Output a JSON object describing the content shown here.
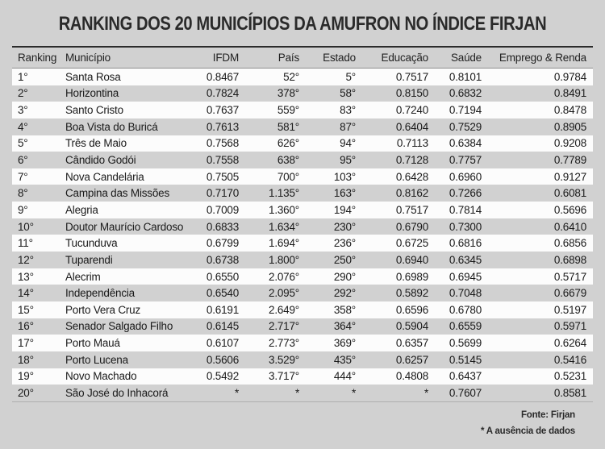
{
  "chart_data": {
    "type": "table",
    "title": "RANKING DOS 20 MUNICÍPIOS DA AMUFRON NO ÍNDICE FIRJAN",
    "columns": [
      "Ranking",
      "Município",
      "IFDM",
      "País",
      "Estado",
      "Educação",
      "Saúde",
      "Emprego & Renda"
    ],
    "rows": [
      [
        "1°",
        "Santa Rosa",
        "0.8467",
        "52°",
        "5°",
        "0.7517",
        "0.8101",
        "0.9784"
      ],
      [
        "2°",
        "Horizontina",
        "0.7824",
        "378°",
        "58°",
        "0.8150",
        "0.6832",
        "0.8491"
      ],
      [
        "3°",
        "Santo Cristo",
        "0.7637",
        "559°",
        "83°",
        "0.7240",
        "0.7194",
        "0.8478"
      ],
      [
        "4°",
        "Boa Vista do Buricá",
        "0.7613",
        "581°",
        "87°",
        "0.6404",
        "0.7529",
        "0.8905"
      ],
      [
        "5°",
        "Três de Maio",
        "0.7568",
        "626°",
        "94°",
        "0.7113",
        "0.6384",
        "0.9208"
      ],
      [
        "6°",
        "Cândido Godói",
        "0.7558",
        "638°",
        "95°",
        "0.7128",
        "0.7757",
        "0.7789"
      ],
      [
        "7°",
        "Nova Candelária",
        "0.7505",
        "700°",
        "103°",
        "0.6428",
        "0.6960",
        "0.9127"
      ],
      [
        "8°",
        "Campina das Missões",
        "0.7170",
        "1.135°",
        "163°",
        "0.8162",
        "0.7266",
        "0.6081"
      ],
      [
        "9°",
        "Alegria",
        "0.7009",
        "1.360°",
        "194°",
        "0.7517",
        "0.7814",
        "0.5696"
      ],
      [
        "10°",
        "Doutor Maurício Cardoso",
        "0.6833",
        "1.634°",
        "230°",
        "0.6790",
        "0.7300",
        "0.6410"
      ],
      [
        "11°",
        "Tucunduva",
        "0.6799",
        "1.694°",
        "236°",
        "0.6725",
        "0.6816",
        "0.6856"
      ],
      [
        "12°",
        "Tuparendi",
        "0.6738",
        "1.800°",
        "250°",
        "0.6940",
        "0.6345",
        "0.6898"
      ],
      [
        "13°",
        "Alecrim",
        "0.6550",
        "2.076°",
        "290°",
        "0.6989",
        "0.6945",
        "0.5717"
      ],
      [
        "14°",
        "Independência",
        "0.6540",
        "2.095°",
        "292°",
        "0.5892",
        "0.7048",
        "0.6679"
      ],
      [
        "15°",
        "Porto Vera Cruz",
        "0.6191",
        "2.649°",
        "358°",
        "0.6596",
        "0.6780",
        "0.5197"
      ],
      [
        "16°",
        "Senador Salgado Filho",
        "0.6145",
        "2.717°",
        "364°",
        "0.5904",
        "0.6559",
        "0.5971"
      ],
      [
        "17°",
        "Porto Mauá",
        "0.6107",
        "2.773°",
        "369°",
        "0.6357",
        "0.5699",
        "0.6264"
      ],
      [
        "18°",
        "Porto Lucena",
        "0.5606",
        "3.529°",
        "435°",
        "0.6257",
        "0.5145",
        "0.5416"
      ],
      [
        "19°",
        "Novo Machado",
        "0.5492",
        "3.717°",
        "444°",
        "0.4808",
        "0.6437",
        "0.5231"
      ],
      [
        "20°",
        "São José do Inhacorá",
        "*",
        "*",
        "*",
        "*",
        "0.7607",
        "0.8581"
      ]
    ],
    "source": "Fonte: Firjan",
    "footnote": "* A ausência de dados"
  },
  "colors": {
    "page_background": "#d1d1d1",
    "row_white": "#fcfcfc",
    "header_top_border": "#2b2b2b",
    "text": "#1a1a1a"
  }
}
